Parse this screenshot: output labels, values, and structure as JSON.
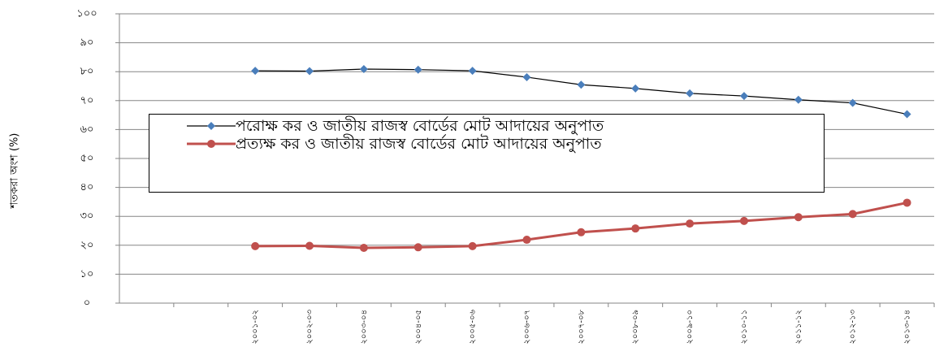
{
  "chart_data": {
    "type": "line",
    "y_label": "শতকরা অংশ (%)",
    "categories": [
      null,
      null,
      "২০০১-০২",
      "২০০২-০৩",
      "২০০৩-০৪",
      "২০০৪-০৫",
      "২০০৫-০৬",
      "২০০৬-০৭",
      "২০০৭-০৮",
      "২০০৮-০৯",
      "২০০৯-১০",
      "২০১০-১১",
      "২০১১-১২",
      "২০১২-১৩",
      "২০১৩-১৪"
    ],
    "series": [
      {
        "name": "পরোক্ষ কর ও  জাতীয় রাজস্ব বোর্ডের মোট আদায়ের অনুপাত",
        "color": "#4a7ebb",
        "line_color": "#000000",
        "marker": "diamond",
        "values": [
          null,
          null,
          80.3,
          80.2,
          80.9,
          80.7,
          80.3,
          78.1,
          75.5,
          74.2,
          72.5,
          71.6,
          70.3,
          69.2,
          65.3
        ]
      },
      {
        "name": "প্রত্যক্ষ কর ও জাতীয় রাজস্ব বোর্ডের মোট আদায়ের অনুপাত",
        "color": "#c0504d",
        "line_color": "#c0504d",
        "marker": "circle",
        "values": [
          null,
          null,
          19.7,
          19.8,
          19.1,
          19.3,
          19.7,
          21.9,
          24.5,
          25.8,
          27.5,
          28.4,
          29.7,
          30.8,
          34.7
        ]
      }
    ],
    "ylim": [
      0,
      100
    ],
    "yticks": [
      {
        "value": 0,
        "label": "০"
      },
      {
        "value": 10,
        "label": "১০"
      },
      {
        "value": 20,
        "label": "২০"
      },
      {
        "value": 30,
        "label": "৩০"
      },
      {
        "value": 40,
        "label": "৪০"
      },
      {
        "value": 50,
        "label": "৫০"
      },
      {
        "value": 60,
        "label": "৬০"
      },
      {
        "value": 70,
        "label": "৭০"
      },
      {
        "value": 80,
        "label": "৮০"
      },
      {
        "value": 90,
        "label": "৯০"
      },
      {
        "value": 100,
        "label": "১০০"
      }
    ],
    "grid": true
  }
}
